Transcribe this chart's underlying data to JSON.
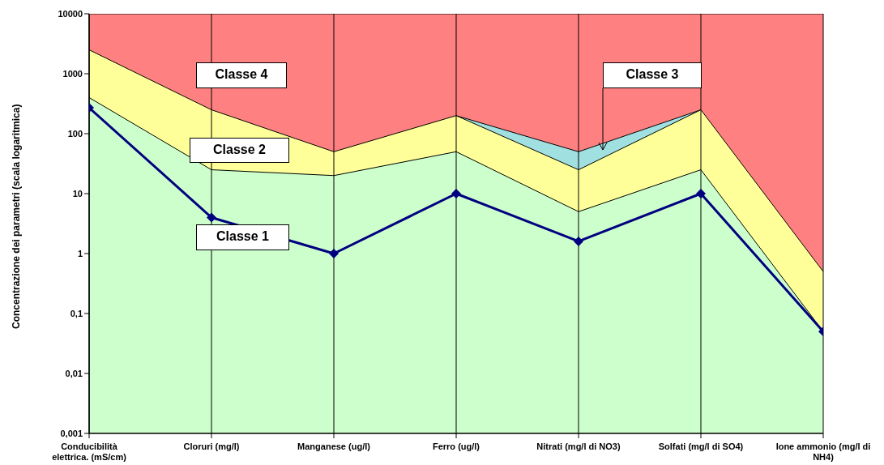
{
  "chart_data": {
    "type": "area",
    "ylabel": "Concentrazione dei parametri (scala logaritmica)",
    "categories": [
      "Conducibilità elettrica. (mS/cm)",
      "Cloruri (mg/l)",
      "Manganese (ug/l)",
      "Ferro (ug/l)",
      "Nitrati (mg/l di NO3)",
      "Solfati (mg/l di SO4)",
      "Ione ammonio (mg/l di NH4)"
    ],
    "series": [
      {
        "color": "#ccffcc",
        "values": [
          400,
          25,
          20,
          50,
          5,
          25,
          0.05
        ]
      },
      {
        "color": "#ffff99",
        "values": [
          2500,
          250,
          50,
          200,
          25,
          250,
          0.5
        ]
      },
      {
        "color": "#a0e0e0",
        "values": [
          null,
          null,
          null,
          200,
          50,
          250,
          null
        ]
      },
      {
        "color": "#ff8080",
        "values": [
          10000,
          10000,
          10000,
          10000,
          10000,
          10000,
          10000
        ]
      },
      {
        "type": "line",
        "color": "#000080",
        "marker": "diamond",
        "values": [
          270,
          4,
          1,
          10,
          1.6,
          10,
          0.05
        ]
      }
    ],
    "log": "y",
    "ylim": [
      0.001,
      10000
    ],
    "yticks": [
      {
        "value": 0.001,
        "label": "0,001"
      },
      {
        "value": 0.01,
        "label": "0,01"
      },
      {
        "value": 0.1,
        "label": "0,1"
      },
      1,
      10,
      100,
      1000,
      10000
    ],
    "grid": "x",
    "legend": false,
    "line_style": "solid",
    "annotations": [
      "Classe 4",
      "Classe 3",
      "Classe 2",
      "Classe 1"
    ]
  }
}
